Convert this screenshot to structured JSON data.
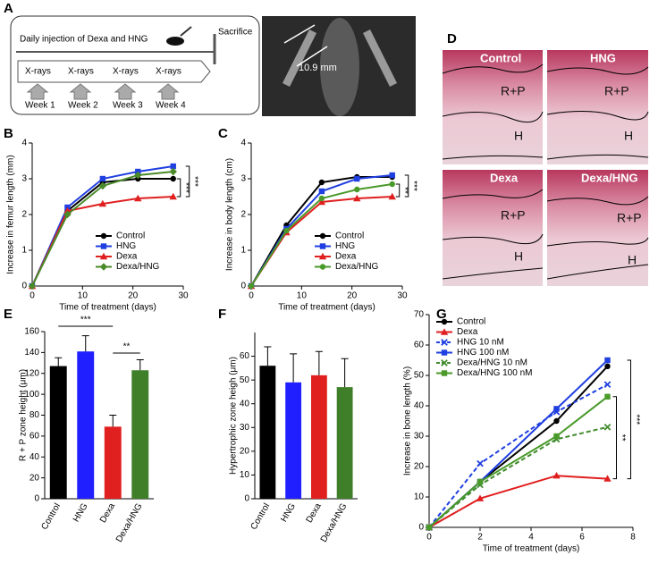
{
  "panel_labels": [
    "A",
    "B",
    "C",
    "D",
    "E",
    "F",
    "G"
  ],
  "diagram": {
    "protocol": "Daily injection of Dexa and HNG",
    "endpoint": "Sacrifice",
    "xray_steps": [
      "X-rays",
      "X-rays",
      "X-rays",
      "X-rays"
    ],
    "weeks": [
      "Week 1",
      "Week 2",
      "Week 3",
      "Week 4"
    ],
    "xray_measure": "10.9 mm"
  },
  "histology": {
    "panels": [
      {
        "label": "Control",
        "zones": [
          "R+P",
          "H"
        ]
      },
      {
        "label": "HNG",
        "zones": [
          "R+P",
          "H"
        ]
      },
      {
        "label": "Dexa",
        "zones": [
          "R+P",
          "H"
        ]
      },
      {
        "label": "Dexa/HNG",
        "zones": [
          "R+P",
          "H"
        ]
      }
    ]
  },
  "chart_data": [
    {
      "type": "line",
      "panel": "B",
      "xlabel": "Time of treatment (days)",
      "ylabel": "Increase in femur length (mm)",
      "x": [
        0,
        7,
        14,
        21,
        28
      ],
      "xlim": [
        0,
        30
      ],
      "xticks": [
        0,
        10,
        20,
        30
      ],
      "ylim": [
        0,
        4
      ],
      "yticks": [
        0,
        1,
        2,
        3,
        4
      ],
      "legend": "lower right",
      "annotations": [
        "***",
        "***"
      ],
      "series": [
        {
          "name": "Control",
          "color": "#000000",
          "marker": "circle",
          "values": [
            0,
            2.1,
            2.9,
            3.0,
            3.0
          ]
        },
        {
          "name": "HNG",
          "color": "#1f3fe0",
          "marker": "square",
          "values": [
            0,
            2.2,
            3.0,
            3.2,
            3.35
          ]
        },
        {
          "name": "Dexa",
          "color": "#e01f1f",
          "marker": "triangle",
          "values": [
            0,
            2.1,
            2.3,
            2.45,
            2.5
          ]
        },
        {
          "name": "Dexa/HNG",
          "color": "#4a8a2a",
          "marker": "diamond",
          "values": [
            0,
            2.0,
            2.8,
            3.1,
            3.2
          ]
        }
      ]
    },
    {
      "type": "line",
      "panel": "C",
      "xlabel": "Time of treatment (days)",
      "ylabel": "Increase in body length (cm)",
      "x": [
        0,
        7,
        14,
        21,
        28
      ],
      "xlim": [
        0,
        30
      ],
      "xticks": [
        0,
        10,
        20,
        30
      ],
      "ylim": [
        0,
        4
      ],
      "yticks": [
        0,
        1,
        2,
        3,
        4
      ],
      "legend": "lower right",
      "annotations": [
        "**",
        "***"
      ],
      "series": [
        {
          "name": "Control",
          "color": "#000000",
          "marker": "circle",
          "values": [
            0,
            1.7,
            2.9,
            3.05,
            3.05
          ]
        },
        {
          "name": "HNG",
          "color": "#1f3fe0",
          "marker": "square",
          "values": [
            0,
            1.6,
            2.65,
            3.0,
            3.1
          ]
        },
        {
          "name": "Dexa",
          "color": "#e01f1f",
          "marker": "triangle",
          "values": [
            0,
            1.5,
            2.35,
            2.45,
            2.5
          ]
        },
        {
          "name": "Dexa/HNG",
          "color": "#4a9a2a",
          "marker": "circle",
          "values": [
            0,
            1.55,
            2.45,
            2.7,
            2.85
          ]
        }
      ]
    },
    {
      "type": "bar",
      "panel": "E",
      "ylabel": "R + P zone height (μm)",
      "categories": [
        "Control",
        "HNG",
        "Dexa",
        "Dexa/HNG"
      ],
      "colors": [
        "#000000",
        "#1f1fff",
        "#e01f1f",
        "#3f7f2a"
      ],
      "values": [
        127,
        141,
        69,
        123
      ],
      "errors": [
        8,
        15,
        11,
        10
      ],
      "ylim": [
        0,
        160
      ],
      "yticks": [
        0,
        20,
        40,
        60,
        80,
        100,
        120,
        140,
        160
      ],
      "annotations": [
        "***",
        "**"
      ]
    },
    {
      "type": "bar",
      "panel": "F",
      "ylabel": "Hypertrophic  zone heigh (μm)",
      "categories": [
        "Control",
        "HNG",
        "Dexa",
        "Dexa/HNG"
      ],
      "colors": [
        "#000000",
        "#1f1fff",
        "#e01f1f",
        "#3f7f2a"
      ],
      "values": [
        56,
        49,
        52,
        47
      ],
      "errors": [
        8,
        12,
        10,
        12
      ],
      "ylim": [
        0,
        70
      ],
      "yticks": [
        0,
        10,
        20,
        30,
        40,
        50,
        60
      ]
    },
    {
      "type": "line",
      "panel": "G",
      "xlabel": "Time of treatment (days)",
      "ylabel": "Increase in bone length (%)",
      "x": [
        0,
        2,
        5,
        7
      ],
      "xlim": [
        0,
        8
      ],
      "xticks": [
        0,
        2,
        4,
        6,
        8
      ],
      "ylim": [
        0,
        70
      ],
      "yticks": [
        0,
        10,
        20,
        30,
        40,
        50,
        60,
        70
      ],
      "legend": "upper left",
      "annotations": [
        "**",
        "***"
      ],
      "series": [
        {
          "name": "Control",
          "color": "#000000",
          "marker": "circle",
          "values": [
            0,
            15,
            35,
            53
          ]
        },
        {
          "name": "Dexa",
          "color": "#e01f1f",
          "marker": "triangle",
          "values": [
            0,
            9.5,
            17,
            16
          ]
        },
        {
          "name": "HNG 10 nM",
          "color": "#1f3fe0",
          "marker": "x",
          "dash": true,
          "values": [
            0,
            21,
            38,
            47
          ]
        },
        {
          "name": "HNG 100 nM",
          "color": "#1f3fe0",
          "marker": "square",
          "values": [
            0,
            15,
            39,
            55
          ]
        },
        {
          "name": "Dexa/HNG 10 nM",
          "color": "#3f8a2a",
          "marker": "x",
          "dash": true,
          "values": [
            0,
            14,
            29,
            33
          ]
        },
        {
          "name": "Dexa/HNG 100 nM",
          "color": "#4a9a2a",
          "marker": "square",
          "values": [
            0,
            15,
            30,
            43
          ]
        }
      ]
    }
  ]
}
